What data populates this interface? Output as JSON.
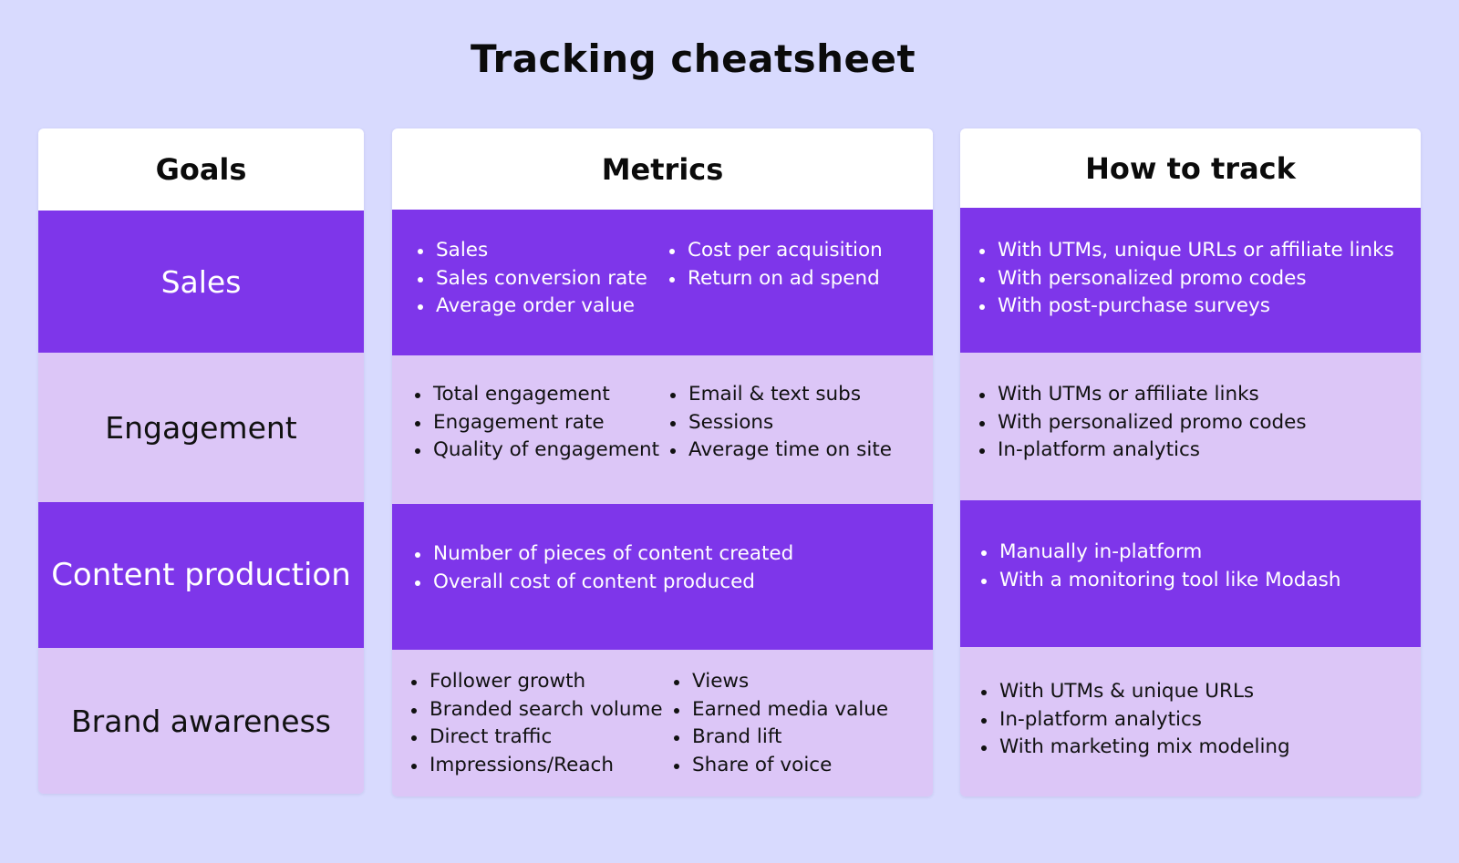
{
  "title": "Tracking cheatsheet",
  "columns": {
    "goals": "Goals",
    "metrics": "Metrics",
    "track": "How to track"
  },
  "rows": [
    {
      "goal": "Sales",
      "metrics_left": [
        "Sales",
        "Sales conversion rate",
        "Average order value"
      ],
      "metrics_right": [
        "Cost per acquisition",
        "Return on ad spend"
      ],
      "track": [
        "With UTMs, unique URLs or affiliate links",
        "With personalized promo codes",
        "With post-purchase surveys"
      ]
    },
    {
      "goal": "Engagement",
      "metrics_left": [
        "Total engagement",
        "Engagement rate",
        "Quality of engagement"
      ],
      "metrics_right": [
        "Email & text subs",
        "Sessions",
        "Average time on site"
      ],
      "track": [
        "With UTMs or affiliate links",
        "With personalized promo codes",
        "In-platform analytics"
      ]
    },
    {
      "goal": "Content production",
      "metrics_left": [
        "Number of pieces of content created",
        "Overall cost of content produced"
      ],
      "metrics_right": [],
      "track": [
        "Manually in-platform",
        "With a monitoring tool like Modash"
      ]
    },
    {
      "goal": "Brand awareness",
      "metrics_left": [
        "Follower growth",
        "Branded search volume",
        "Direct traffic",
        "Impressions/Reach"
      ],
      "metrics_right": [
        "Views",
        "Earned media value",
        "Brand lift",
        "Share of voice"
      ],
      "track": [
        "With UTMs & unique URLs",
        "In-platform analytics",
        "With marketing mix modeling"
      ]
    }
  ],
  "colors": {
    "background": "#d8dafe",
    "dark_row": "#7e36ea",
    "light_row": "#dcc6f7",
    "header": "#ffffff"
  }
}
